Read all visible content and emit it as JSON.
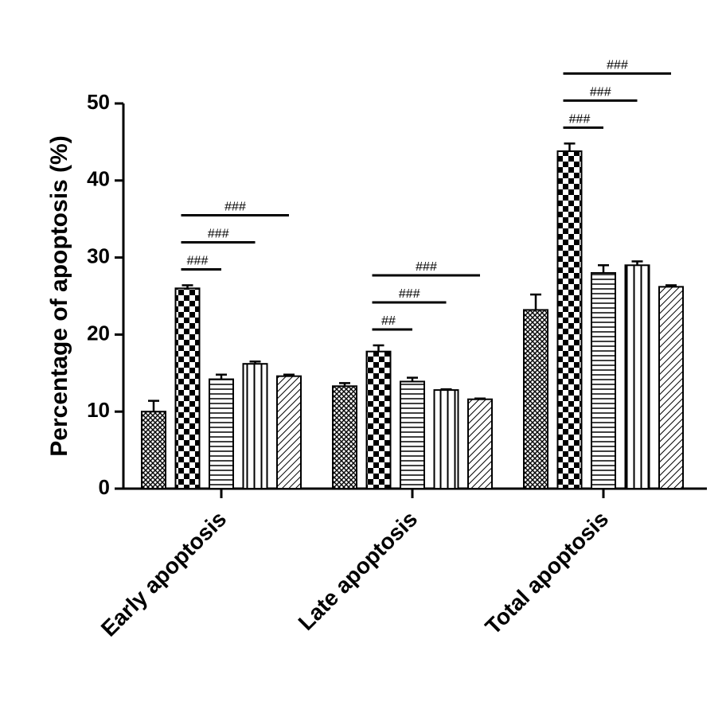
{
  "chart_data": {
    "type": "bar",
    "y_label": "Percentage of apoptosis (%)",
    "categories": [
      "Early apoptosis",
      "Late apoptosis",
      "Total apoptosis"
    ],
    "series": [
      {
        "pattern": "crosshatch",
        "color": "#000000",
        "values": [
          10,
          13.3,
          23.2
        ],
        "errors": [
          1.4,
          0.4,
          2
        ]
      },
      {
        "pattern": "checker",
        "color": "#000000",
        "values": [
          26,
          17.8,
          43.8
        ],
        "errors": [
          0.4,
          0.8,
          1
        ]
      },
      {
        "pattern": "horizontal",
        "color": "#000000",
        "values": [
          14.2,
          13.9,
          28
        ],
        "errors": [
          0.6,
          0.5,
          1
        ]
      },
      {
        "pattern": "vertical",
        "color": "#000000",
        "values": [
          16.2,
          12.8,
          29
        ],
        "errors": [
          0.3,
          0.1,
          0.5
        ]
      },
      {
        "pattern": "diagonal",
        "color": "#000000",
        "values": [
          14.6,
          11.6,
          26.2
        ],
        "errors": [
          0.2,
          0.1,
          0.2
        ]
      }
    ],
    "ylim": [
      0,
      50
    ],
    "yticks": [
      0,
      10,
      20,
      30,
      40,
      50
    ],
    "annotations": [
      {
        "category": 0,
        "from": 1,
        "to": 2,
        "label": "###"
      },
      {
        "category": 0,
        "from": 1,
        "to": 3,
        "label": "###"
      },
      {
        "category": 0,
        "from": 1,
        "to": 4,
        "label": "###"
      },
      {
        "category": 1,
        "from": 1,
        "to": 2,
        "label": "##"
      },
      {
        "category": 1,
        "from": 1,
        "to": 3,
        "label": "###"
      },
      {
        "category": 1,
        "from": 1,
        "to": 4,
        "label": "###"
      },
      {
        "category": 2,
        "from": 1,
        "to": 2,
        "label": "###"
      },
      {
        "category": 2,
        "from": 1,
        "to": 3,
        "label": "###"
      },
      {
        "category": 2,
        "from": 1,
        "to": 4,
        "label": "###"
      }
    ]
  }
}
